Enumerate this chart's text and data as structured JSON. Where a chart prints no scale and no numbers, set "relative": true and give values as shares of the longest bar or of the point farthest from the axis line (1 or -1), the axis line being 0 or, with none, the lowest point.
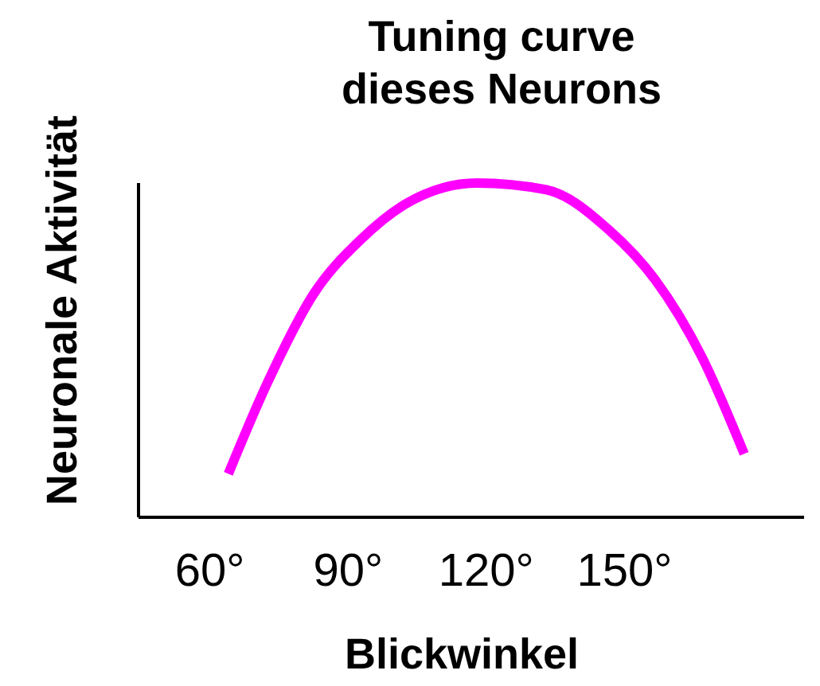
{
  "chart_data": {
    "type": "line",
    "title": "Tuning curve\ndieses Neurons",
    "xlabel": "Blickwinkel",
    "ylabel": "Neuronale Aktivität",
    "relative": true,
    "x": [
      64,
      72.4,
      82.6,
      92.7,
      102.8,
      118,
      133,
      146.6,
      156.7,
      166.8,
      176
    ],
    "series": [
      {
        "color": "#ff00ff",
        "values": [
          0.13,
          0.4,
          0.67,
          0.83,
          0.94,
          1,
          0.98,
          0.86,
          0.71,
          0.48,
          0.19
        ]
      }
    ],
    "xlim": [
      44.5,
      189
    ],
    "xticks": [
      {
        "value": 60,
        "label": "60°"
      },
      {
        "value": 90,
        "label": "90°"
      },
      {
        "value": 120,
        "label": "120°"
      },
      {
        "value": 150,
        "label": "150°"
      }
    ],
    "grid": false,
    "marker": "none",
    "line_style": "solid"
  }
}
